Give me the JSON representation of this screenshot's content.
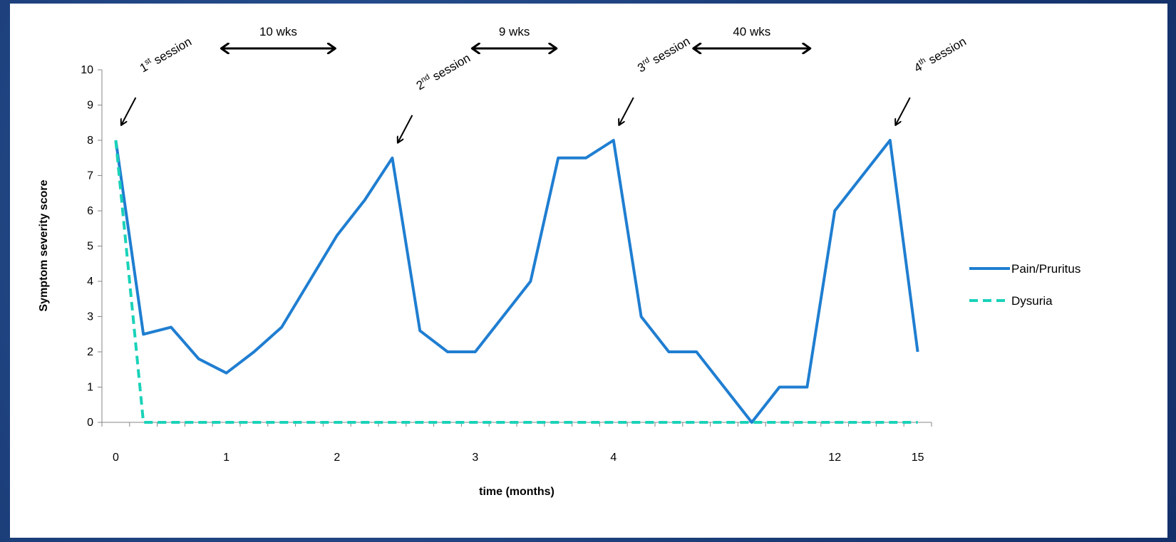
{
  "chart_data": {
    "type": "line",
    "xlabel": "time (months)",
    "ylabel": "Symptom severity score",
    "ylim": [
      0,
      10
    ],
    "yticks": [
      "0",
      "1",
      "2",
      "3",
      "4",
      "5",
      "6",
      "7",
      "8",
      "9",
      "10"
    ],
    "xtick_labels": [
      {
        "label": "0",
        "x": 0
      },
      {
        "label": "1",
        "x": 4
      },
      {
        "label": "2",
        "x": 8
      },
      {
        "label": "3",
        "x": 13
      },
      {
        "label": "4",
        "x": 18
      },
      {
        "label": "12",
        "x": 26
      },
      {
        "label": "15",
        "x": 29
      }
    ],
    "x_points": 30,
    "legend_position": "right",
    "series": [
      {
        "name": "Pain/Pruritus",
        "color": "#1f7ed1",
        "style": "solid",
        "points": [
          [
            0,
            8
          ],
          [
            1,
            2.5
          ],
          [
            2,
            2.7
          ],
          [
            3,
            1.8
          ],
          [
            4,
            1.4
          ],
          [
            5,
            2
          ],
          [
            6,
            2.7
          ],
          [
            7,
            4
          ],
          [
            8,
            5.3
          ],
          [
            9,
            6.3
          ],
          [
            10,
            7.5
          ],
          [
            11,
            2.6
          ],
          [
            12,
            2
          ],
          [
            13,
            2
          ],
          [
            14,
            3
          ],
          [
            15,
            4
          ],
          [
            16,
            7.5
          ],
          [
            17,
            7.5
          ],
          [
            18,
            8
          ],
          [
            19,
            3
          ],
          [
            20,
            2
          ],
          [
            21,
            2
          ],
          [
            22,
            1
          ],
          [
            23,
            0
          ],
          [
            24,
            1
          ],
          [
            25,
            1
          ],
          [
            26,
            6
          ],
          [
            27,
            7
          ],
          [
            28,
            8
          ],
          [
            29,
            2
          ]
        ]
      },
      {
        "name": "Dysuria",
        "color": "#19d2b8",
        "style": "dashed",
        "points": [
          [
            0,
            8
          ],
          [
            1,
            0
          ],
          [
            2,
            0
          ],
          [
            3,
            0
          ],
          [
            4,
            0
          ],
          [
            5,
            0
          ],
          [
            6,
            0
          ],
          [
            7,
            0
          ],
          [
            8,
            0
          ],
          [
            9,
            0
          ],
          [
            10,
            0
          ],
          [
            11,
            0
          ],
          [
            12,
            0
          ],
          [
            13,
            0
          ],
          [
            14,
            0
          ],
          [
            15,
            0
          ],
          [
            16,
            0
          ],
          [
            17,
            0
          ],
          [
            18,
            0
          ],
          [
            19,
            0
          ],
          [
            20,
            0
          ],
          [
            21,
            0
          ],
          [
            22,
            0
          ],
          [
            23,
            0
          ],
          [
            24,
            0
          ],
          [
            25,
            0
          ],
          [
            26,
            0
          ],
          [
            27,
            0
          ],
          [
            28,
            0
          ],
          [
            29,
            0
          ]
        ]
      }
    ],
    "sessions": [
      {
        "base": "1",
        "sup": "st",
        "rest": " session",
        "x": 0,
        "y": 8
      },
      {
        "base": "2",
        "sup": "nd",
        "rest": " session",
        "x": 10,
        "y": 7.5
      },
      {
        "base": "3",
        "sup": "rd",
        "rest": " session",
        "x": 18,
        "y": 8
      },
      {
        "base": "4",
        "sup": "th",
        "rest": " session",
        "x": 28,
        "y": 8
      }
    ],
    "intervals": [
      {
        "label": "10 wks",
        "from_session": 0,
        "to_session": 1
      },
      {
        "label": "9 wks",
        "from_session": 1,
        "to_session": 2
      },
      {
        "label": "40 wks",
        "from_session": 2,
        "to_session": 3
      }
    ]
  }
}
